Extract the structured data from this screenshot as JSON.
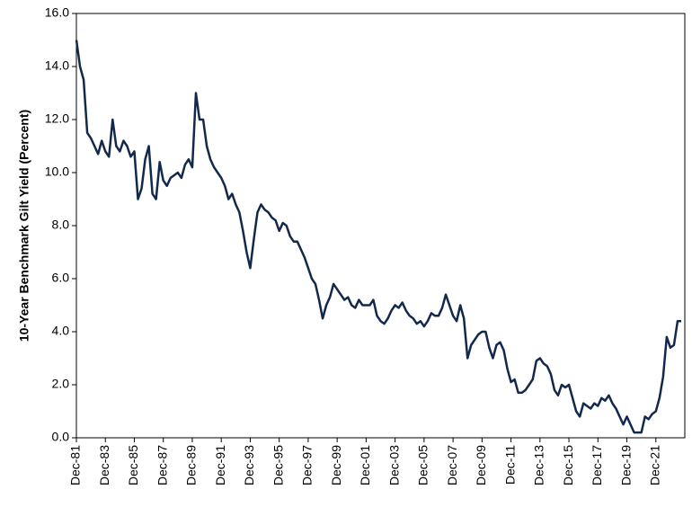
{
  "chart_data": {
    "type": "line",
    "y_label": "10-Year Benchmark Gilt Yield (Percent)",
    "color": "#13294b",
    "categories": [
      "Dec-81",
      "Mar-82",
      "Jun-82",
      "Sep-82",
      "Dec-82",
      "Mar-83",
      "Jun-83",
      "Sep-83",
      "Dec-83",
      "Mar-84",
      "Jun-84",
      "Sep-84",
      "Dec-84",
      "Mar-85",
      "Jun-85",
      "Sep-85",
      "Dec-85",
      "Mar-86",
      "Jun-86",
      "Sep-86",
      "Dec-86",
      "Mar-87",
      "Jun-87",
      "Sep-87",
      "Dec-87",
      "Mar-88",
      "Jun-88",
      "Sep-88",
      "Dec-88",
      "Mar-89",
      "Jun-89",
      "Sep-89",
      "Dec-89",
      "Mar-90",
      "Jun-90",
      "Sep-90",
      "Dec-90",
      "Mar-91",
      "Jun-91",
      "Sep-91",
      "Dec-91",
      "Mar-92",
      "Jun-92",
      "Sep-92",
      "Dec-92",
      "Mar-93",
      "Jun-93",
      "Sep-93",
      "Dec-93",
      "Mar-94",
      "Jun-94",
      "Sep-94",
      "Dec-94",
      "Mar-95",
      "Jun-95",
      "Sep-95",
      "Dec-95",
      "Mar-96",
      "Jun-96",
      "Sep-96",
      "Dec-96",
      "Mar-97",
      "Jun-97",
      "Sep-97",
      "Dec-97",
      "Mar-98",
      "Jun-98",
      "Sep-98",
      "Dec-98",
      "Mar-99",
      "Jun-99",
      "Sep-99",
      "Dec-99",
      "Mar-00",
      "Jun-00",
      "Sep-00",
      "Dec-00",
      "Mar-01",
      "Jun-01",
      "Sep-01",
      "Dec-01",
      "Mar-02",
      "Jun-02",
      "Sep-02",
      "Dec-02",
      "Mar-03",
      "Jun-03",
      "Sep-03",
      "Dec-03",
      "Mar-04",
      "Jun-04",
      "Sep-04",
      "Dec-04",
      "Mar-05",
      "Jun-05",
      "Sep-05",
      "Dec-05",
      "Mar-06",
      "Jun-06",
      "Sep-06",
      "Dec-06",
      "Mar-07",
      "Jun-07",
      "Sep-07",
      "Dec-07",
      "Mar-08",
      "Jun-08",
      "Sep-08",
      "Dec-08",
      "Mar-09",
      "Jun-09",
      "Sep-09",
      "Dec-09",
      "Mar-10",
      "Jun-10",
      "Sep-10",
      "Dec-10",
      "Mar-11",
      "Jun-11",
      "Sep-11",
      "Dec-11",
      "Mar-12",
      "Jun-12",
      "Sep-12",
      "Dec-12",
      "Mar-13",
      "Jun-13",
      "Sep-13",
      "Dec-13",
      "Mar-14",
      "Jun-14",
      "Sep-14",
      "Dec-14",
      "Mar-15",
      "Jun-15",
      "Sep-15",
      "Dec-15",
      "Mar-16",
      "Jun-16",
      "Sep-16",
      "Dec-16",
      "Mar-17",
      "Jun-17",
      "Sep-17",
      "Dec-17",
      "Mar-18",
      "Jun-18",
      "Sep-18",
      "Dec-18",
      "Mar-19",
      "Jun-19",
      "Sep-19",
      "Dec-19",
      "Mar-20",
      "Jun-20",
      "Sep-20",
      "Dec-20",
      "Mar-21",
      "Jun-21",
      "Sep-21",
      "Dec-21",
      "Mar-22",
      "Jun-22",
      "Sep-22",
      "Dec-22",
      "Mar-23",
      "Jun-23",
      "Sep-23"
    ],
    "values": [
      15.0,
      14.0,
      13.5,
      11.5,
      11.3,
      11.0,
      10.7,
      11.2,
      10.8,
      10.6,
      12.0,
      11.0,
      10.8,
      11.2,
      11.0,
      10.6,
      10.8,
      9.0,
      9.4,
      10.5,
      11.0,
      9.2,
      9.0,
      10.4,
      9.7,
      9.5,
      9.8,
      9.9,
      10.0,
      9.8,
      10.3,
      10.5,
      10.2,
      13.0,
      12.0,
      12.0,
      11.0,
      10.5,
      10.2,
      10.0,
      9.8,
      9.5,
      9.0,
      9.2,
      8.8,
      8.5,
      7.8,
      7.0,
      6.4,
      7.5,
      8.5,
      8.8,
      8.6,
      8.5,
      8.3,
      8.2,
      7.8,
      8.1,
      8.0,
      7.6,
      7.4,
      7.4,
      7.1,
      6.8,
      6.4,
      6.0,
      5.8,
      5.2,
      4.5,
      5.0,
      5.3,
      5.8,
      5.6,
      5.4,
      5.2,
      5.3,
      5.0,
      4.9,
      5.2,
      5.0,
      5.0,
      5.0,
      5.2,
      4.6,
      4.4,
      4.3,
      4.5,
      4.8,
      5.0,
      4.9,
      5.1,
      4.8,
      4.6,
      4.5,
      4.3,
      4.4,
      4.2,
      4.4,
      4.7,
      4.6,
      4.6,
      4.9,
      5.4,
      5.0,
      4.6,
      4.4,
      5.0,
      4.5,
      3.0,
      3.5,
      3.7,
      3.9,
      4.0,
      4.0,
      3.4,
      3.0,
      3.5,
      3.6,
      3.3,
      2.6,
      2.1,
      2.2,
      1.7,
      1.7,
      1.8,
      2.0,
      2.2,
      2.9,
      3.0,
      2.8,
      2.7,
      2.4,
      1.8,
      1.6,
      2.0,
      1.9,
      2.0,
      1.5,
      1.0,
      0.8,
      1.3,
      1.2,
      1.1,
      1.3,
      1.2,
      1.5,
      1.4,
      1.6,
      1.3,
      1.1,
      0.8,
      0.5,
      0.8,
      0.5,
      0.2,
      0.2,
      0.2,
      0.8,
      0.7,
      0.9,
      1.0,
      1.5,
      2.3,
      3.8,
      3.4,
      3.5,
      4.4,
      4.4
    ],
    "xticks": [
      "Dec-81",
      "Dec-83",
      "Dec-85",
      "Dec-87",
      "Dec-89",
      "Dec-91",
      "Dec-93",
      "Dec-95",
      "Dec-97",
      "Dec-99",
      "Dec-01",
      "Dec-03",
      "Dec-05",
      "Dec-07",
      "Dec-09",
      "Dec-11",
      "Dec-13",
      "Dec-15",
      "Dec-17",
      "Dec-19",
      "Dec-21"
    ],
    "ylim": [
      0,
      16
    ],
    "yticks": [
      {
        "value": 0,
        "label": "0.0"
      },
      {
        "value": 2,
        "label": "2.0"
      },
      {
        "value": 4,
        "label": "4.0"
      },
      {
        "value": 6,
        "label": "6.0"
      },
      {
        "value": 8,
        "label": "8.0"
      },
      {
        "value": 10,
        "label": "10.0"
      },
      {
        "value": 12,
        "label": "12.0"
      },
      {
        "value": 14,
        "label": "14.0"
      },
      {
        "value": 16,
        "label": "16.0"
      }
    ],
    "grid": false
  }
}
